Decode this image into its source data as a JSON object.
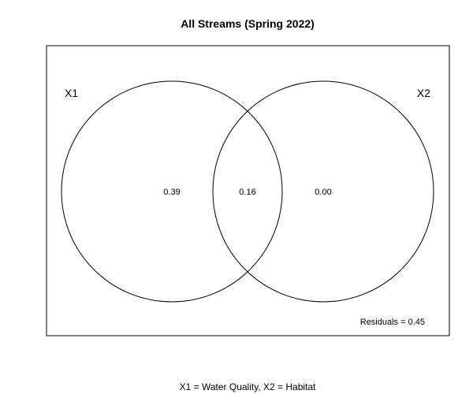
{
  "title": "All Streams (Spring 2022)",
  "sets": [
    {
      "label": "X1",
      "value": "0.39"
    },
    {
      "label": "X2",
      "value": "0.00"
    }
  ],
  "intersection": {
    "value": "0.16"
  },
  "residuals": "Residuals = 0.45",
  "footnote": "X1 = Water Quality, X2 = Habitat",
  "colors": {
    "stroke": "#000000",
    "background": "#ffffff"
  }
}
